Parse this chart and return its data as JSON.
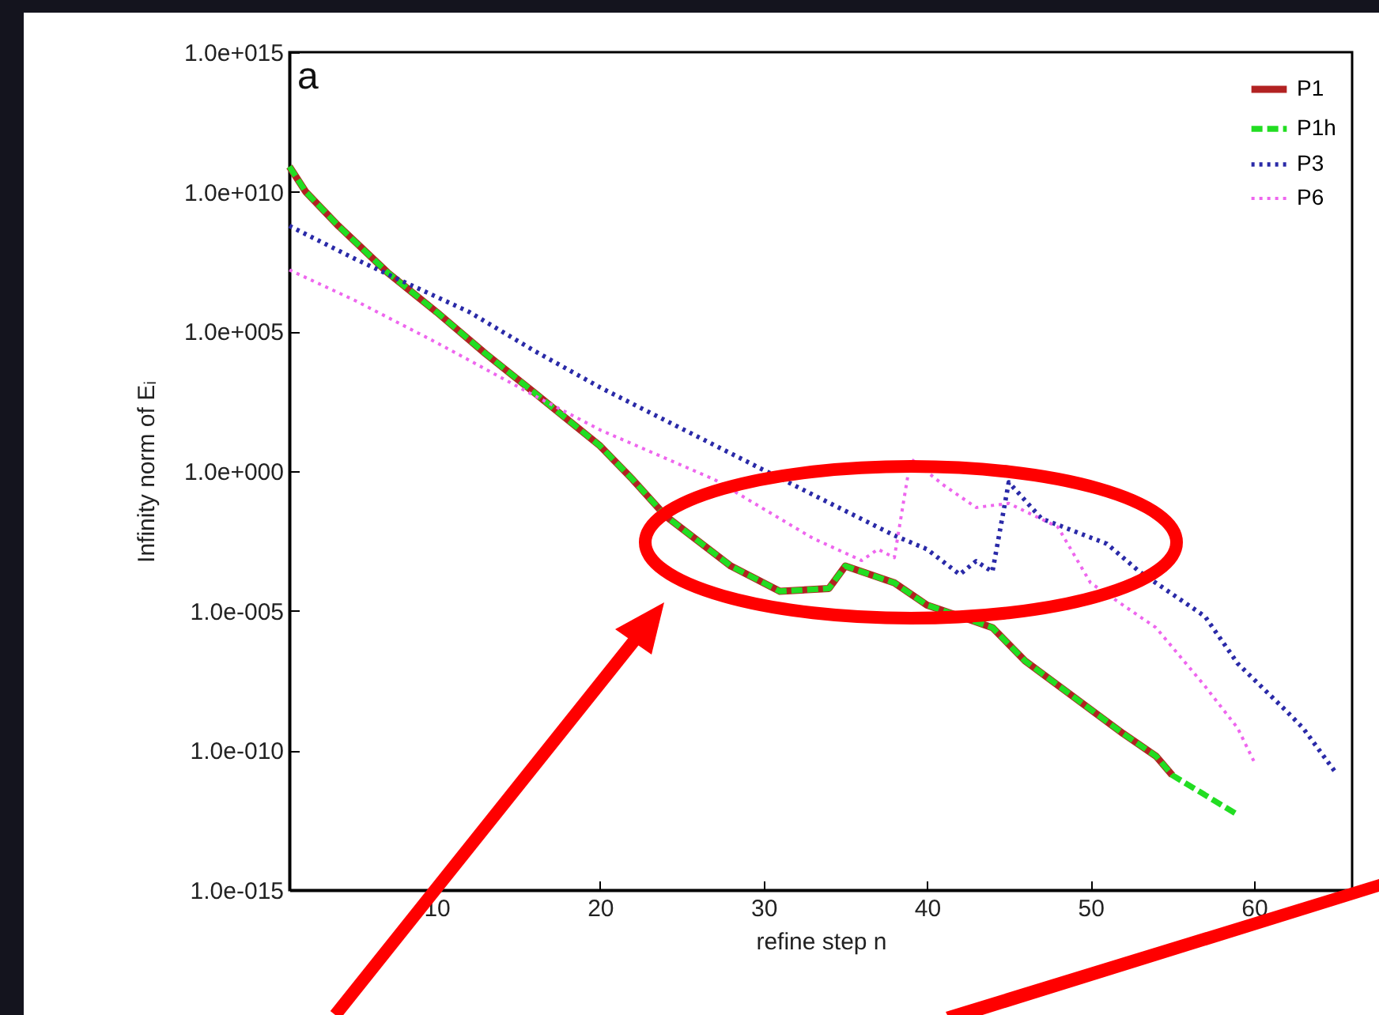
{
  "chart_data": {
    "type": "line",
    "xlabel": "refine step n",
    "ylabel": "Infinity norm of Eᵢ",
    "annotations": [
      "a"
    ],
    "log": "y",
    "grid": false,
    "legend": "top right",
    "marker": "none",
    "xlim": [
      1,
      66
    ],
    "xticks": [
      10,
      20,
      30,
      40,
      50,
      60
    ],
    "ylim": [
      1e-15,
      1000000000000000.0
    ],
    "yticks": [
      {
        "value": 1000000000000000.0,
        "label": "1.0e+015"
      },
      {
        "value": 10000000000.0,
        "label": "1.0e+010"
      },
      {
        "value": 100000.0,
        "label": "1.0e+005"
      },
      {
        "value": 1,
        "label": "1.0e+000"
      },
      {
        "value": 1e-05,
        "label": "1.0e-005"
      },
      {
        "value": 1e-10,
        "label": "1.0e-010"
      },
      {
        "value": 1e-15,
        "label": "1.0e-015"
      }
    ],
    "series": [
      {
        "name": "P1",
        "color": "#b22222",
        "line_style": "solid",
        "x": [
          1,
          2,
          4,
          7,
          10,
          13,
          16,
          20,
          22,
          24,
          28,
          31,
          34,
          35,
          38,
          40,
          43,
          44,
          46,
          49,
          52,
          54,
          55
        ],
        "values": [
          80000000000.0,
          10000000000.0,
          600000000.0,
          13000000.0,
          500000.0,
          16000.0,
          630,
          8,
          0.5,
          0.025,
          0.0004,
          5e-05,
          6.3e-05,
          0.0004,
          0.0001,
          1.6e-05,
          4e-06,
          2.5e-06,
          1.6e-07,
          8e-09,
          4e-10,
          6.3e-11,
          1.3e-11
        ]
      },
      {
        "name": "P1h",
        "color": "#22dd22",
        "line_style": "dashed",
        "x": [
          1,
          2,
          4,
          7,
          10,
          13,
          16,
          20,
          22,
          24,
          28,
          31,
          34,
          35,
          38,
          40,
          43,
          44,
          46,
          49,
          52,
          54,
          55,
          59
        ],
        "values": [
          80000000000.0,
          10000000000.0,
          600000000.0,
          13000000.0,
          500000.0,
          16000.0,
          630,
          8,
          0.5,
          0.025,
          0.0004,
          5e-05,
          6.3e-05,
          0.0004,
          0.0001,
          1.6e-05,
          4e-06,
          2.5e-06,
          1.6e-07,
          8e-09,
          4e-10,
          6.3e-11,
          1.3e-11,
          5e-13
        ]
      },
      {
        "name": "P3",
        "color": "#2a2aa8",
        "line_style": "dotted",
        "x": [
          1,
          5,
          8,
          12,
          16,
          20,
          30,
          38,
          40,
          42,
          43,
          44,
          45,
          47,
          51,
          53,
          57,
          59,
          62,
          63,
          65
        ],
        "values": [
          600000000.0,
          40000000.0,
          6000000.0,
          500000.0,
          20000.0,
          1000,
          1.1,
          0.005,
          0.0016,
          0.0002,
          0.0006,
          0.00025,
          0.4,
          0.02,
          0.0025,
          0.00025,
          6.3e-06,
          1.3e-07,
          2.5e-09,
          6.3e-10,
          1.6e-11
        ]
      },
      {
        "name": "P6",
        "color": "#ee66ee",
        "line_style": "dotted",
        "x": [
          1,
          5,
          10,
          16,
          20,
          27,
          33,
          36,
          37,
          38,
          39,
          41,
          43,
          45,
          48,
          50,
          54,
          57,
          59,
          60
        ],
        "values": [
          16000000.0,
          1300000.0,
          40000.0,
          500,
          30,
          0.5,
          0.004,
          0.00063,
          0.0016,
          0.0008,
          2.8,
          0.32,
          0.05,
          0.07,
          0.01,
          0.0001,
          2.5e-06,
          2e-08,
          6.3e-10,
          4e-11
        ]
      }
    ]
  }
}
